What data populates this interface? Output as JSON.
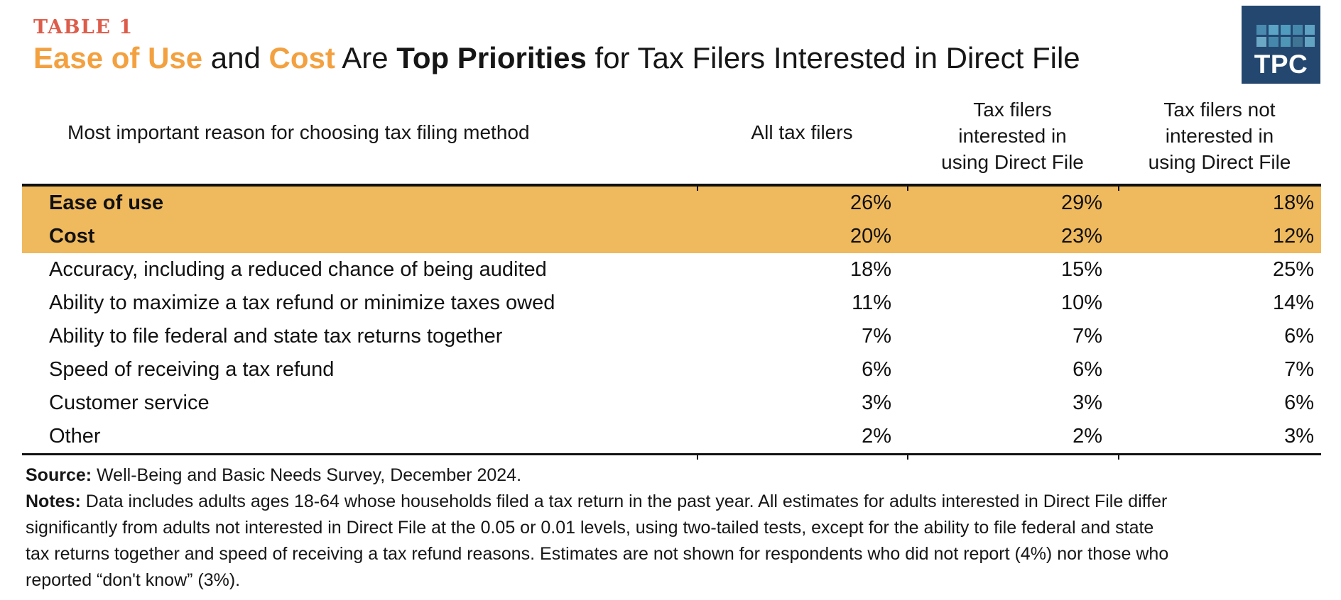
{
  "header": {
    "table_label": "TABLE 1",
    "title_parts": {
      "ease_of_use": "Ease of Use",
      "and": " and ",
      "cost": "Cost",
      "are": " Are ",
      "top_priorities": "Top Priorities",
      "rest": " for Tax Filers Interested in Direct File"
    }
  },
  "logo": {
    "text": "TPC",
    "background": "#24476F",
    "squares": [
      "#4a8aae",
      "#5ba4c6",
      "#4f9cbf",
      "#4688ac",
      "#5ea1c2",
      "#6ba8c5",
      "#4688ac",
      "#4f95b5",
      "#3f7494",
      "#63a4c3"
    ]
  },
  "colors": {
    "accent_orange": "#F3A140",
    "table_label_red": "#DD5C4A",
    "row_highlight": "#EFB95E",
    "rule": "#111111",
    "logo_navy": "#24476F"
  },
  "chart_data": {
    "type": "table",
    "table_label": "TABLE 1",
    "title": "Ease of Use and Cost Are Top Priorities for Tax Filers Interested in Direct File",
    "columns": [
      "Most important reason for choosing tax filing method",
      "All tax filers",
      "Tax filers interested in using Direct File",
      "Tax filers not interested in using Direct File"
    ],
    "column_header_lines": {
      "reason": "Most important reason for choosing tax filing method",
      "all_tax_filers": "All tax filers",
      "interested": [
        "Tax filers",
        "interested in",
        "using Direct File"
      ],
      "not_interested": [
        "Tax filers not",
        "interested in",
        "using Direct File"
      ]
    },
    "rows": [
      {
        "label": "Ease of use",
        "values": [
          "26%",
          "29%",
          "18%"
        ],
        "highlighted": true
      },
      {
        "label": "Cost",
        "values": [
          "20%",
          "23%",
          "12%"
        ],
        "highlighted": true
      },
      {
        "label": "Accuracy, including a reduced chance of being audited",
        "values": [
          "18%",
          "15%",
          "25%"
        ],
        "highlighted": false
      },
      {
        "label": "Ability to maximize a tax refund or minimize taxes owed",
        "values": [
          "11%",
          "10%",
          "14%"
        ],
        "highlighted": false
      },
      {
        "label": "Ability to file federal and state tax returns together",
        "values": [
          "7%",
          "7%",
          "6%"
        ],
        "highlighted": false
      },
      {
        "label": "Speed of receiving a tax refund",
        "values": [
          "6%",
          "6%",
          "7%"
        ],
        "highlighted": false
      },
      {
        "label": "Customer service",
        "values": [
          "3%",
          "3%",
          "6%"
        ],
        "highlighted": false
      },
      {
        "label": "Other",
        "values": [
          "2%",
          "2%",
          "3%"
        ],
        "highlighted": false
      }
    ]
  },
  "footer": {
    "source_label": "Source:",
    "source_text": " Well-Being and Basic Needs Survey, December 2024.",
    "notes_label": "Notes:",
    "notes_lines": [
      " Data includes adults ages 18-64 whose households filed a tax return in the past year. All estimates for adults interested in Direct File differ",
      "significantly from adults not interested in Direct File at the 0.05 or 0.01 levels, using two-tailed tests, except for the ability to file federal and state",
      "tax returns together and speed of receiving a tax refund reasons. Estimates are not shown for respondents who did not report (4%) nor those who",
      "reported “don't know” (3%)."
    ]
  }
}
